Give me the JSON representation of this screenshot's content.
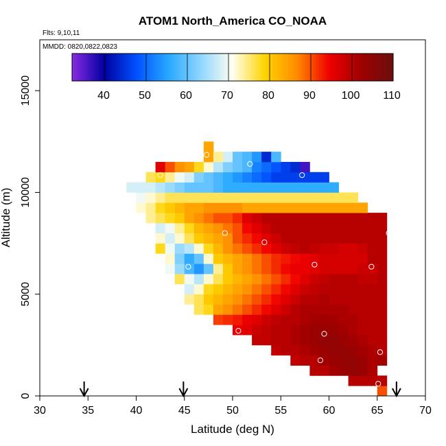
{
  "chart_data": {
    "type": "heatmap",
    "title": "ATOM1 North_America CO_NOAA",
    "annotations": [
      "Flts: 9,10,11",
      "MMDD: 0820,0822,0823"
    ],
    "xlabel": "Latitude (deg N)",
    "ylabel": "Altitude (m)",
    "xlim": [
      30,
      70
    ],
    "ylim": [
      0,
      17500
    ],
    "x_ticks": [
      30,
      35,
      40,
      45,
      50,
      55,
      60,
      65,
      70
    ],
    "y_ticks": [
      0,
      5000,
      10000,
      15000
    ],
    "colorbar": {
      "range": [
        32,
        110
      ],
      "ticks": [
        40,
        50,
        60,
        70,
        80,
        90,
        100,
        110
      ],
      "stops": [
        "#8a2be2",
        "#0000a0",
        "#0050ff",
        "#28a8ff",
        "#8fd6ff",
        "#fffff0",
        "#ffd400",
        "#ff8c00",
        "#f00000",
        "#a00000",
        "#6a1010"
      ]
    },
    "grid": {
      "cell_lat": 1,
      "cell_alt": 500,
      "rows": [
        {
          "alt": 250,
          "lat_start": 65,
          "values": [
            90
          ]
        },
        {
          "alt": 750,
          "lat_start": 62,
          "values": [
            100,
            100,
            100,
            100
          ]
        },
        {
          "alt": 1250,
          "lat_start": 58,
          "values": [
            100,
            100,
            102,
            103,
            104,
            103,
            101
          ]
        },
        {
          "alt": 1750,
          "lat_start": 56,
          "values": [
            99,
            100,
            100,
            102,
            103,
            104,
            104,
            103,
            101,
            102
          ]
        },
        {
          "alt": 2250,
          "lat_start": 54,
          "values": [
            99,
            100,
            100,
            101,
            102,
            103,
            104,
            104,
            103,
            102,
            101,
            100
          ]
        },
        {
          "alt": 2750,
          "lat_start": 52,
          "values": [
            99,
            99,
            100,
            100,
            101,
            102,
            103,
            104,
            104,
            103,
            102,
            101,
            100,
            100
          ]
        },
        {
          "alt": 3250,
          "lat_start": 50,
          "values": [
            95,
            96,
            98,
            99,
            100,
            100,
            101,
            102,
            103,
            103,
            103,
            102,
            101,
            100,
            100,
            100
          ]
        },
        {
          "alt": 3750,
          "lat_start": 48,
          "values": [
            91,
            92,
            93,
            95,
            96,
            98,
            99,
            100,
            100,
            101,
            102,
            102,
            102,
            101,
            101,
            100,
            100,
            100
          ]
        },
        {
          "alt": 4250,
          "lat_start": 46,
          "values": [
            76,
            78,
            84,
            86,
            88,
            90,
            92,
            94,
            96,
            98,
            100,
            101,
            101,
            101,
            101,
            101,
            100,
            100,
            100,
            100
          ]
        },
        {
          "alt": 4750,
          "lat_start": 45,
          "values": [
            74,
            76,
            80,
            82,
            84,
            86,
            88,
            90,
            92,
            94,
            96,
            98,
            100,
            100,
            101,
            100,
            100,
            100,
            100,
            100,
            100
          ]
        },
        {
          "alt": 5250,
          "lat_start": 45,
          "values": [
            68,
            72,
            78,
            80,
            82,
            84,
            86,
            88,
            90,
            92,
            94,
            96,
            98,
            99,
            100,
            100,
            100,
            100,
            100,
            100,
            100
          ]
        },
        {
          "alt": 5750,
          "lat_start": 44,
          "values": [
            76,
            70,
            66,
            72,
            76,
            80,
            82,
            84,
            86,
            88,
            90,
            92,
            94,
            96,
            98,
            99,
            100,
            100,
            100,
            99,
            99,
            100
          ]
        },
        {
          "alt": 6250,
          "lat_start": 43,
          "values": [
            70,
            64,
            58,
            54,
            60,
            74,
            80,
            84,
            86,
            88,
            90,
            92,
            94,
            95,
            95,
            96,
            97,
            97,
            97,
            97,
            98,
            98,
            100
          ]
        },
        {
          "alt": 6750,
          "lat_start": 43,
          "values": [
            72,
            62,
            56,
            60,
            72,
            80,
            82,
            84,
            86,
            88,
            90,
            92,
            93,
            94,
            95,
            96,
            97,
            97,
            97,
            97,
            97,
            100,
            100
          ]
        },
        {
          "alt": 7250,
          "lat_start": 42,
          "values": [
            78,
            70,
            64,
            66,
            72,
            78,
            82,
            86,
            88,
            90,
            92,
            94,
            96,
            98,
            99,
            100,
            99,
            98,
            98,
            97,
            97,
            98,
            100,
            100
          ]
        },
        {
          "alt": 7750,
          "lat_start": 42,
          "values": [
            72,
            68,
            72,
            76,
            80,
            82,
            84,
            86,
            90,
            92,
            94,
            96,
            98,
            100,
            100,
            100,
            100,
            100,
            100,
            100,
            100,
            100,
            100,
            100
          ]
        },
        {
          "alt": 8250,
          "lat_start": 42,
          "values": [
            68,
            70,
            74,
            78,
            82,
            84,
            86,
            88,
            90,
            94,
            96,
            98,
            100,
            100,
            100,
            100,
            100,
            100,
            100,
            100,
            100,
            100,
            100,
            100
          ]
        },
        {
          "alt": 8750,
          "lat_start": 41,
          "values": [
            74,
            76,
            78,
            80,
            84,
            86,
            88,
            90,
            90,
            92,
            96,
            98,
            100,
            100,
            100,
            100,
            100,
            100,
            100,
            100,
            100,
            100,
            100,
            100,
            100
          ]
        },
        {
          "alt": 9250,
          "lat_start": 40,
          "values": [
            72,
            74,
            78,
            80,
            82,
            84,
            84,
            86,
            86,
            86,
            86,
            84,
            84,
            84,
            84,
            84,
            84,
            84,
            84,
            84,
            84,
            84,
            84,
            84
          ]
        },
        {
          "alt": 9750,
          "lat_start": 40,
          "values": [
            70,
            72,
            74,
            76,
            76,
            76,
            76,
            76,
            76,
            76,
            76,
            76,
            76,
            76,
            76,
            76,
            76,
            76,
            76,
            76,
            76,
            76,
            76
          ]
        },
        {
          "alt": 10250,
          "lat_start": 39,
          "values": [
            68,
            68,
            68,
            66,
            64,
            62,
            60,
            60,
            60,
            58,
            56,
            56,
            56,
            56,
            56,
            56,
            56,
            56,
            56,
            56,
            56,
            56
          ]
        },
        {
          "alt": 10750,
          "lat_start": 41,
          "values": [
            76,
            78,
            74,
            70,
            68,
            62,
            60,
            58,
            56,
            54,
            52,
            50,
            48,
            46,
            46,
            46,
            46,
            46,
            46
          ]
        },
        {
          "alt": 11250,
          "lat_start": 42,
          "values": [
            96,
            90,
            86,
            84,
            78,
            72,
            66,
            62,
            60,
            58,
            52,
            50,
            48,
            46,
            44,
            36
          ]
        },
        {
          "alt": 11750,
          "lat_start": 47,
          "values": [
            84,
            74,
            68,
            60,
            58,
            54,
            44,
            58
          ]
        },
        {
          "alt": 12250,
          "lat_start": 47,
          "values": [
            84
          ]
        }
      ]
    },
    "markers": [
      {
        "lat": 47.3,
        "alt": 11850
      },
      {
        "lat": 51.8,
        "alt": 11400
      },
      {
        "lat": 42.5,
        "alt": 10850
      },
      {
        "lat": 57.2,
        "alt": 10850
      },
      {
        "lat": 49.2,
        "alt": 8000
      },
      {
        "lat": 53.3,
        "alt": 7550
      },
      {
        "lat": 66.2,
        "alt": 8000
      },
      {
        "lat": 45.4,
        "alt": 6350
      },
      {
        "lat": 58.5,
        "alt": 6450
      },
      {
        "lat": 64.4,
        "alt": 6350
      },
      {
        "lat": 50.6,
        "alt": 3200
      },
      {
        "lat": 59.5,
        "alt": 3050
      },
      {
        "lat": 59.1,
        "alt": 1750
      },
      {
        "lat": 65.3,
        "alt": 2150
      },
      {
        "lat": 65.1,
        "alt": 600
      }
    ],
    "flight_arrows": [
      34.6,
      44.9,
      67.0
    ]
  }
}
